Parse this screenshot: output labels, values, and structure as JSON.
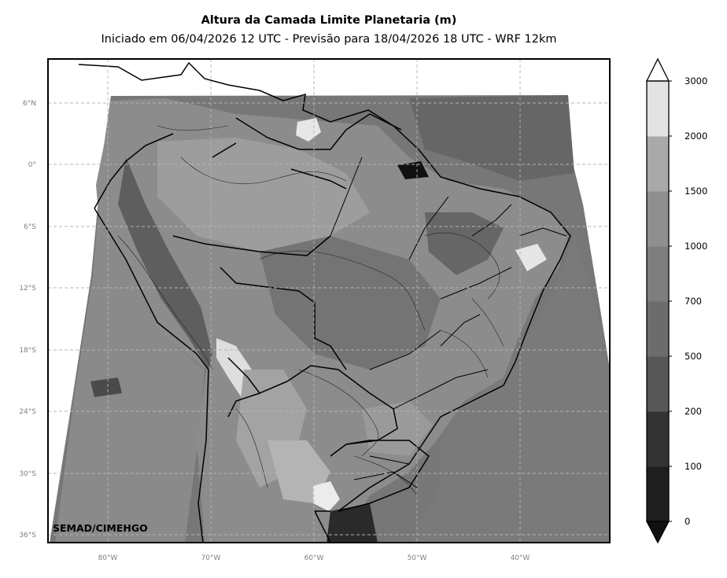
{
  "title": "Altura da Camada Limite Planetaria (m)",
  "subtitle": "Iniciado em 06/04/2026 12 UTC - Previsão para 18/04/2026 18 UTC - WRF 12km",
  "credit": "SEMAD/CIMEHGO",
  "map": {
    "type": "filled-contour",
    "variable": "planetary boundary layer height",
    "units": "m",
    "lon_range": [
      -86,
      -31.5
    ],
    "lat_range": [
      -37,
      10
    ],
    "lat_ticks": [
      "6°N",
      "0°",
      "6°S",
      "12°S",
      "18°S",
      "24°S",
      "30°S",
      "36°S"
    ],
    "lon_ticks": [
      "80°W",
      "70°W",
      "60°W",
      "50°W",
      "40°W"
    ],
    "gridlines": "dashed"
  },
  "colorbar": {
    "levels": [
      "0",
      "100",
      "200",
      "500",
      "700",
      "1000",
      "1500",
      "2000",
      "3000"
    ],
    "colors": [
      "#1e1e1e",
      "#333333",
      "#575757",
      "#6c6c6c",
      "#7e7e7e",
      "#8f8f8f",
      "#a9a9a9",
      "#e3e3e3"
    ],
    "extend": "both",
    "under_color": "#111111",
    "over_color": "#ffffff"
  }
}
